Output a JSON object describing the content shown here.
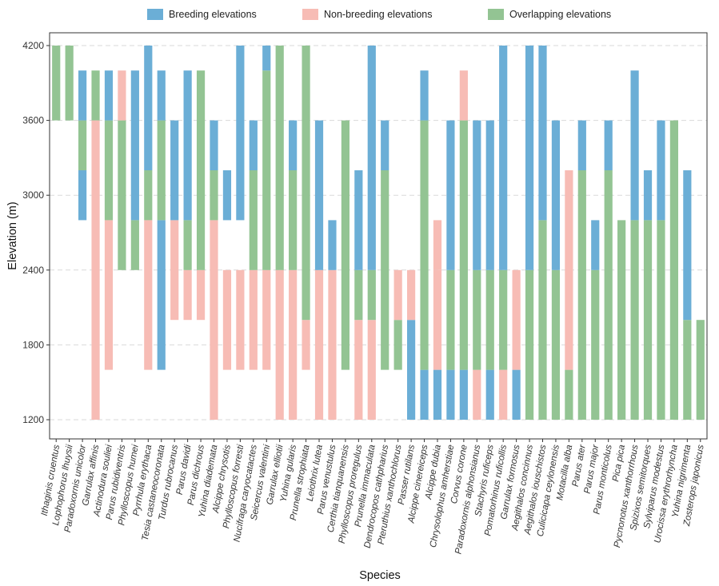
{
  "chart_data": {
    "type": "bar",
    "subtype": "stacked-range",
    "xlabel": "Species",
    "ylabel": "Elevation (m)",
    "ylim": [
      1200,
      4200
    ],
    "yticks": [
      1200,
      1800,
      2400,
      3000,
      3600,
      4200
    ],
    "grid": "horizontal dashed",
    "legend_position": "top",
    "legend": [
      {
        "key": "breeding",
        "label": "Breeding elevations",
        "color": "#6BAED6"
      },
      {
        "key": "nonbreeding",
        "label": "Non-breeding elevations",
        "color": "#F7BCB5"
      },
      {
        "key": "overlap",
        "label": "Overlapping elevations",
        "color": "#93C493"
      }
    ],
    "series": [
      {
        "name": "Ithaginis cruentus",
        "segments": [
          {
            "type": "overlap",
            "from": 3600,
            "to": 4200
          }
        ]
      },
      {
        "name": "Lophophorus lhuysii",
        "segments": [
          {
            "type": "overlap",
            "from": 3600,
            "to": 4200
          }
        ]
      },
      {
        "name": "Paradoxornis unicolor",
        "segments": [
          {
            "type": "breeding",
            "from": 2800,
            "to": 3200
          },
          {
            "type": "overlap",
            "from": 3200,
            "to": 3600
          },
          {
            "type": "breeding",
            "from": 3600,
            "to": 4000
          }
        ]
      },
      {
        "name": "Garrulax affinis",
        "segments": [
          {
            "type": "nonbreeding",
            "from": 1200,
            "to": 3600
          },
          {
            "type": "overlap",
            "from": 3600,
            "to": 4000
          }
        ]
      },
      {
        "name": "Actinodura souliei",
        "segments": [
          {
            "type": "nonbreeding",
            "from": 1600,
            "to": 2800
          },
          {
            "type": "overlap",
            "from": 2800,
            "to": 3600
          },
          {
            "type": "breeding",
            "from": 3600,
            "to": 4000
          }
        ]
      },
      {
        "name": "Parus rubidiventris",
        "segments": [
          {
            "type": "overlap",
            "from": 2400,
            "to": 3600
          },
          {
            "type": "nonbreeding",
            "from": 3600,
            "to": 4000
          }
        ]
      },
      {
        "name": "Phylloscopus humei",
        "segments": [
          {
            "type": "overlap",
            "from": 2400,
            "to": 2800
          },
          {
            "type": "breeding",
            "from": 2800,
            "to": 4000
          }
        ]
      },
      {
        "name": "Pyrrhula erythaca",
        "segments": [
          {
            "type": "nonbreeding",
            "from": 1600,
            "to": 2800
          },
          {
            "type": "overlap",
            "from": 2800,
            "to": 3200
          },
          {
            "type": "breeding",
            "from": 3200,
            "to": 4200
          }
        ]
      },
      {
        "name": "Tesia castaneocoronata",
        "segments": [
          {
            "type": "breeding",
            "from": 1600,
            "to": 2800
          },
          {
            "type": "overlap",
            "from": 2800,
            "to": 3600
          },
          {
            "type": "breeding",
            "from": 3600,
            "to": 4000
          }
        ]
      },
      {
        "name": "Turdus rubrocanus",
        "segments": [
          {
            "type": "nonbreeding",
            "from": 2000,
            "to": 2800
          },
          {
            "type": "breeding",
            "from": 2800,
            "to": 3600
          }
        ]
      },
      {
        "name": "Parus davidi",
        "segments": [
          {
            "type": "nonbreeding",
            "from": 2000,
            "to": 2400
          },
          {
            "type": "overlap",
            "from": 2400,
            "to": 2800
          },
          {
            "type": "breeding",
            "from": 2800,
            "to": 4000
          }
        ]
      },
      {
        "name": "Parus dichrous",
        "segments": [
          {
            "type": "nonbreeding",
            "from": 2000,
            "to": 2400
          },
          {
            "type": "overlap",
            "from": 2400,
            "to": 4000
          }
        ]
      },
      {
        "name": "Yuhina diademata",
        "segments": [
          {
            "type": "nonbreeding",
            "from": 1200,
            "to": 2800
          },
          {
            "type": "overlap",
            "from": 2800,
            "to": 3200
          },
          {
            "type": "breeding",
            "from": 3200,
            "to": 3600
          }
        ]
      },
      {
        "name": "Alcippe chrysotis",
        "segments": [
          {
            "type": "nonbreeding",
            "from": 1600,
            "to": 2400
          },
          {
            "type": "breeding",
            "from": 2800,
            "to": 3200
          }
        ]
      },
      {
        "name": "Phylloscopus forresti",
        "segments": [
          {
            "type": "nonbreeding",
            "from": 1600,
            "to": 2400
          },
          {
            "type": "breeding",
            "from": 2800,
            "to": 4200
          }
        ]
      },
      {
        "name": "Nucifraga caryocatactes",
        "segments": [
          {
            "type": "nonbreeding",
            "from": 1600,
            "to": 2400
          },
          {
            "type": "overlap",
            "from": 2400,
            "to": 3200
          },
          {
            "type": "breeding",
            "from": 3200,
            "to": 3600
          }
        ]
      },
      {
        "name": "Seicercus valentini",
        "segments": [
          {
            "type": "nonbreeding",
            "from": 1600,
            "to": 2400
          },
          {
            "type": "overlap",
            "from": 2400,
            "to": 4000
          },
          {
            "type": "breeding",
            "from": 4000,
            "to": 4200
          }
        ]
      },
      {
        "name": "Garrulax elliotii",
        "segments": [
          {
            "type": "nonbreeding",
            "from": 1200,
            "to": 2400
          },
          {
            "type": "overlap",
            "from": 2400,
            "to": 4200
          }
        ]
      },
      {
        "name": "Yuhina gularis",
        "segments": [
          {
            "type": "nonbreeding",
            "from": 1200,
            "to": 2400
          },
          {
            "type": "overlap",
            "from": 2400,
            "to": 3200
          },
          {
            "type": "breeding",
            "from": 3200,
            "to": 3600
          }
        ]
      },
      {
        "name": "Prunella strophiata",
        "segments": [
          {
            "type": "nonbreeding",
            "from": 1600,
            "to": 2000
          },
          {
            "type": "overlap",
            "from": 2000,
            "to": 4200
          }
        ]
      },
      {
        "name": "Leiothrix lutea",
        "segments": [
          {
            "type": "nonbreeding",
            "from": 1200,
            "to": 2400
          },
          {
            "type": "breeding",
            "from": 2400,
            "to": 3600
          }
        ]
      },
      {
        "name": "Parus venustulus",
        "segments": [
          {
            "type": "nonbreeding",
            "from": 1200,
            "to": 2400
          },
          {
            "type": "breeding",
            "from": 2400,
            "to": 2800
          }
        ]
      },
      {
        "name": "Certhia tianquanensis",
        "segments": [
          {
            "type": "overlap",
            "from": 1600,
            "to": 3600
          }
        ]
      },
      {
        "name": "Phylloscopus proregulus",
        "segments": [
          {
            "type": "nonbreeding",
            "from": 1200,
            "to": 2000
          },
          {
            "type": "overlap",
            "from": 2000,
            "to": 2400
          },
          {
            "type": "breeding",
            "from": 2400,
            "to": 3200
          }
        ]
      },
      {
        "name": "Prunella immaculata",
        "segments": [
          {
            "type": "nonbreeding",
            "from": 1200,
            "to": 2000
          },
          {
            "type": "overlap",
            "from": 2000,
            "to": 2400
          },
          {
            "type": "breeding",
            "from": 2400,
            "to": 4200
          }
        ]
      },
      {
        "name": "Dendrocopos cathpharius",
        "segments": [
          {
            "type": "overlap",
            "from": 1600,
            "to": 3200
          },
          {
            "type": "breeding",
            "from": 3200,
            "to": 3600
          }
        ]
      },
      {
        "name": "Pteruthius xanthochlorus",
        "segments": [
          {
            "type": "overlap",
            "from": 1600,
            "to": 2000
          },
          {
            "type": "nonbreeding",
            "from": 2000,
            "to": 2400
          }
        ]
      },
      {
        "name": "Passer rutilans",
        "segments": [
          {
            "type": "breeding",
            "from": 1200,
            "to": 2000
          },
          {
            "type": "nonbreeding",
            "from": 2000,
            "to": 2400
          }
        ]
      },
      {
        "name": "Alcippe cinereiceps",
        "segments": [
          {
            "type": "breeding",
            "from": 1200,
            "to": 1600
          },
          {
            "type": "overlap",
            "from": 1600,
            "to": 3600
          },
          {
            "type": "breeding",
            "from": 3600,
            "to": 4000
          }
        ]
      },
      {
        "name": "Alcippe dubia",
        "segments": [
          {
            "type": "breeding",
            "from": 1200,
            "to": 1600
          },
          {
            "type": "nonbreeding",
            "from": 1600,
            "to": 2400
          },
          {
            "type": "overlap",
            "from": 2400,
            "to": 2400
          },
          {
            "type": "nonbreeding",
            "from": 2400,
            "to": 2800
          }
        ]
      },
      {
        "name": "Chrysolophus amherstiae",
        "segments": [
          {
            "type": "breeding",
            "from": 1200,
            "to": 1600
          },
          {
            "type": "overlap",
            "from": 1600,
            "to": 2400
          },
          {
            "type": "breeding",
            "from": 2400,
            "to": 3600
          }
        ]
      },
      {
        "name": "Corvus corone",
        "segments": [
          {
            "type": "breeding",
            "from": 1200,
            "to": 1600
          },
          {
            "type": "overlap",
            "from": 1600,
            "to": 3600
          },
          {
            "type": "nonbreeding",
            "from": 3600,
            "to": 4000
          }
        ]
      },
      {
        "name": "Paradoxornis alphonsianus",
        "segments": [
          {
            "type": "nonbreeding",
            "from": 1200,
            "to": 1600
          },
          {
            "type": "overlap",
            "from": 1600,
            "to": 2400
          },
          {
            "type": "breeding",
            "from": 2400,
            "to": 3600
          }
        ]
      },
      {
        "name": "Stachyris ruficeps",
        "segments": [
          {
            "type": "breeding",
            "from": 1200,
            "to": 1600
          },
          {
            "type": "overlap",
            "from": 1600,
            "to": 2400
          },
          {
            "type": "breeding",
            "from": 2400,
            "to": 3600
          }
        ]
      },
      {
        "name": "Pomatorhinus ruficollis",
        "segments": [
          {
            "type": "nonbreeding",
            "from": 1200,
            "to": 1600
          },
          {
            "type": "overlap",
            "from": 1600,
            "to": 2400
          },
          {
            "type": "breeding",
            "from": 2400,
            "to": 4200
          }
        ]
      },
      {
        "name": "Garrulax formosus",
        "segments": [
          {
            "type": "breeding",
            "from": 1200,
            "to": 1600
          },
          {
            "type": "nonbreeding",
            "from": 1600,
            "to": 2400
          }
        ]
      },
      {
        "name": "Aegithalos concinnus",
        "segments": [
          {
            "type": "overlap",
            "from": 1200,
            "to": 2400
          },
          {
            "type": "breeding",
            "from": 2400,
            "to": 4200
          }
        ]
      },
      {
        "name": "Aegithalos iouschistos",
        "segments": [
          {
            "type": "overlap",
            "from": 1200,
            "to": 2800
          },
          {
            "type": "breeding",
            "from": 2800,
            "to": 4200
          }
        ]
      },
      {
        "name": "Culicicapa ceylonensis",
        "segments": [
          {
            "type": "overlap",
            "from": 1200,
            "to": 2400
          },
          {
            "type": "breeding",
            "from": 2400,
            "to": 3600
          }
        ]
      },
      {
        "name": "Motacilla alba",
        "segments": [
          {
            "type": "overlap",
            "from": 1200,
            "to": 1600
          },
          {
            "type": "nonbreeding",
            "from": 1600,
            "to": 3200
          }
        ]
      },
      {
        "name": "Parus ater",
        "segments": [
          {
            "type": "overlap",
            "from": 1200,
            "to": 3200
          },
          {
            "type": "breeding",
            "from": 3200,
            "to": 3600
          }
        ]
      },
      {
        "name": "Parus major",
        "segments": [
          {
            "type": "overlap",
            "from": 1200,
            "to": 2400
          },
          {
            "type": "breeding",
            "from": 2400,
            "to": 2800
          }
        ]
      },
      {
        "name": "Parus monticolus",
        "segments": [
          {
            "type": "overlap",
            "from": 1200,
            "to": 3200
          },
          {
            "type": "breeding",
            "from": 3200,
            "to": 3600
          }
        ]
      },
      {
        "name": "Pica pica",
        "segments": [
          {
            "type": "overlap",
            "from": 1200,
            "to": 2800
          }
        ]
      },
      {
        "name": "Pycnonotus xanthorrhous",
        "segments": [
          {
            "type": "overlap",
            "from": 1200,
            "to": 2800
          },
          {
            "type": "breeding",
            "from": 2800,
            "to": 4000
          }
        ]
      },
      {
        "name": "Spizixos semitorques",
        "segments": [
          {
            "type": "overlap",
            "from": 1200,
            "to": 2800
          },
          {
            "type": "breeding",
            "from": 2800,
            "to": 3200
          }
        ]
      },
      {
        "name": "Sylviparus modestus",
        "segments": [
          {
            "type": "overlap",
            "from": 1200,
            "to": 2800
          },
          {
            "type": "breeding",
            "from": 2800,
            "to": 3600
          }
        ]
      },
      {
        "name": "Urocissa erythrorhyncha",
        "segments": [
          {
            "type": "overlap",
            "from": 1200,
            "to": 3600
          }
        ]
      },
      {
        "name": "Yuhina nigrimenta",
        "segments": [
          {
            "type": "overlap",
            "from": 1200,
            "to": 2000
          },
          {
            "type": "breeding",
            "from": 2000,
            "to": 3200
          }
        ]
      },
      {
        "name": "Zosterops japonicus",
        "segments": [
          {
            "type": "overlap",
            "from": 1200,
            "to": 2000
          }
        ]
      }
    ]
  }
}
